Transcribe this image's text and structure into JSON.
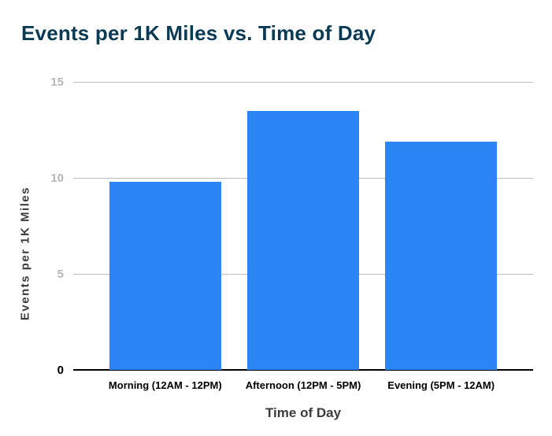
{
  "chart_data": {
    "type": "bar",
    "title": "Events per 1K Miles vs. Time of Day",
    "xlabel": "Time of Day",
    "ylabel": "Events per 1K Miles",
    "categories": [
      "Morning (12AM - 12PM)",
      "Afternoon (12PM - 5PM)",
      "Evening (5PM - 12AM)"
    ],
    "values": [
      9.8,
      13.5,
      11.9
    ],
    "ylim": [
      0,
      15
    ],
    "yticks": [
      0,
      5,
      10,
      15
    ],
    "grid": "horizontal-gridlines-at-5-10-15",
    "legend": "none",
    "colors": {
      "bar": "#2d84f5",
      "title": "#0b3a54",
      "tick_gray": "#b7b7b7",
      "tick_zero": "#000000",
      "gridline": "#bdbdbd",
      "axis_titles": "#3c3c3c",
      "background": "#ffffff"
    }
  }
}
